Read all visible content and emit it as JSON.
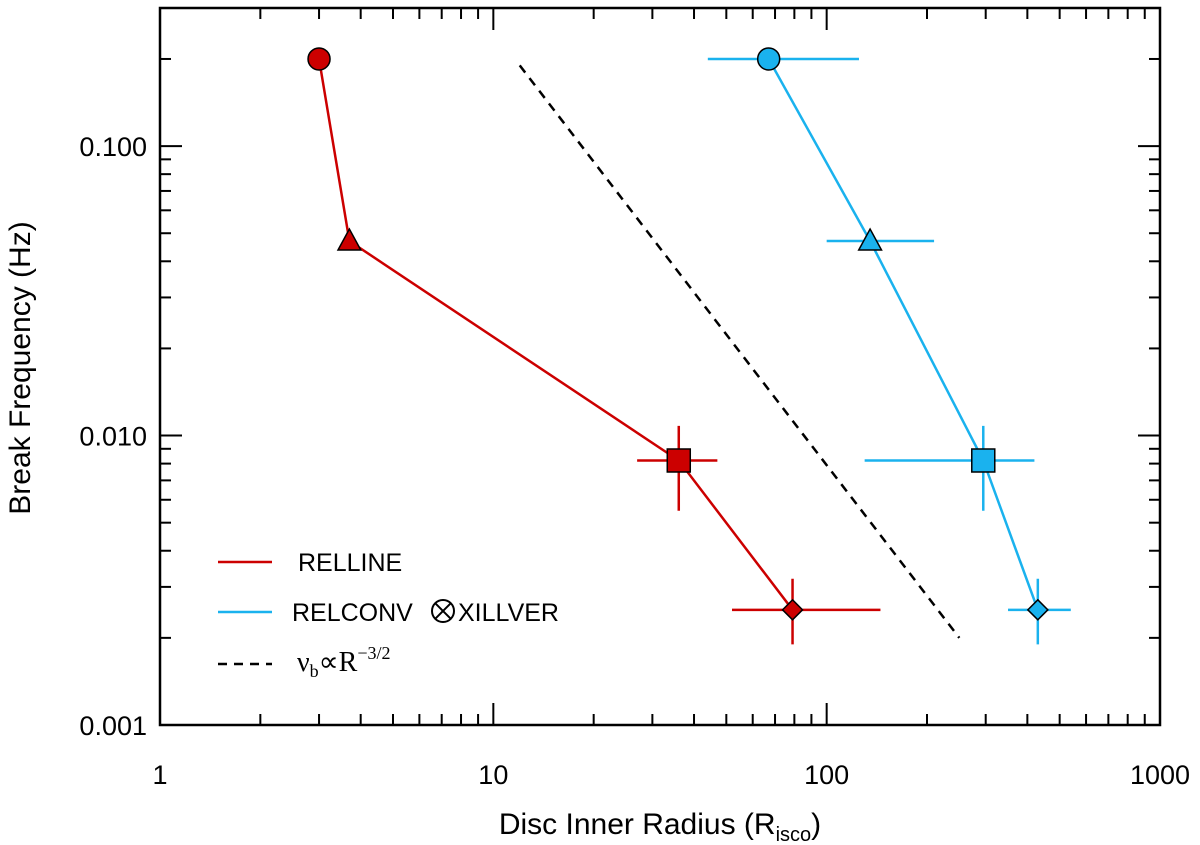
{
  "chart_data": {
    "type": "scatter",
    "xscale": "log",
    "yscale": "log",
    "xlim": [
      1,
      1000
    ],
    "ylim": [
      0.001,
      0.3
    ],
    "xlabel": "Disc Inner Radius (R",
    "xlabel_sub": "isco",
    "xlabel_close": ")",
    "ylabel": "Break Frequency (Hz)",
    "x_ticks": [
      1,
      10,
      100,
      1000
    ],
    "x_tick_labels": [
      "1",
      "10",
      "100",
      "1000"
    ],
    "y_ticks": [
      0.001,
      0.01,
      0.1
    ],
    "y_tick_labels": [
      "0.001",
      "0.010",
      "0.100"
    ],
    "grid": false,
    "legend_position": "bottom-left",
    "series": [
      {
        "name": "RELLINE",
        "color": "#cc0000",
        "points": [
          {
            "x": 3.0,
            "y": 0.2,
            "marker": "circle"
          },
          {
            "x": 3.7,
            "y": 0.047,
            "marker": "triangle"
          },
          {
            "x": 36,
            "y": 0.0082,
            "marker": "square",
            "xerr": [
              27,
              47
            ],
            "yerr": [
              0.0055,
              0.0108
            ]
          },
          {
            "x": 79,
            "y": 0.0025,
            "marker": "diamond",
            "xerr": [
              52,
              145
            ],
            "yerr": [
              0.0019,
              0.0032
            ]
          }
        ]
      },
      {
        "name_parts": [
          "RELCONV",
          "XILLVER"
        ],
        "color": "#1ab2ee",
        "points": [
          {
            "x": 67,
            "y": 0.2,
            "marker": "circle",
            "xerr": [
              44,
              125
            ]
          },
          {
            "x": 135,
            "y": 0.047,
            "marker": "triangle",
            "xerr": [
              100,
              210
            ]
          },
          {
            "x": 295,
            "y": 0.0082,
            "marker": "square",
            "xerr": [
              130,
              420
            ],
            "yerr": [
              0.0055,
              0.0108
            ]
          },
          {
            "x": 430,
            "y": 0.0025,
            "marker": "diamond",
            "xerr": [
              350,
              540
            ],
            "yerr": [
              0.0019,
              0.0032
            ]
          }
        ]
      }
    ],
    "reference_line": {
      "color": "#000000",
      "style": "dashed",
      "x": [
        12,
        250
      ],
      "y": [
        0.19,
        0.002
      ],
      "legend_parts": [
        "ν",
        "b",
        "∝R",
        "−3/2"
      ]
    }
  }
}
